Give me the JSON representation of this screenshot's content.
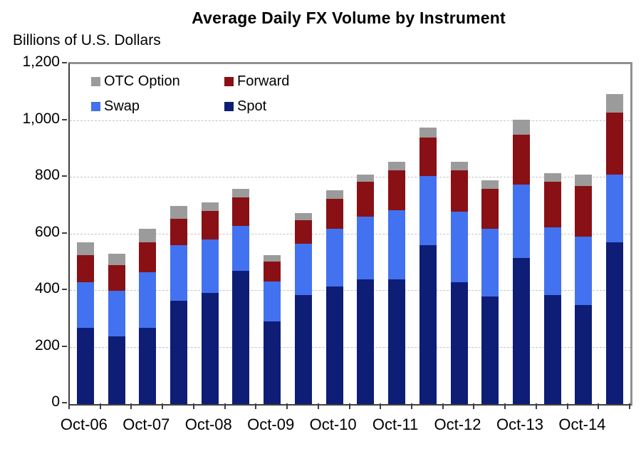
{
  "title": "Average Daily FX Volume by Instrument",
  "y_axis_unit_label": "Billions of U.S. Dollars",
  "chart_data": {
    "type": "bar",
    "stacked": true,
    "title": "Average Daily FX Volume by Instrument",
    "ylabel": "Billions of U.S. Dollars",
    "xlabel": "",
    "ylim": [
      0,
      1200
    ],
    "y_ticks": [
      0,
      200,
      400,
      600,
      800,
      1000,
      1200
    ],
    "y_tick_labels": [
      "0",
      "200",
      "400",
      "600",
      "800",
      "1,000",
      "1,200"
    ],
    "grid": "horizontal-dashed",
    "legend_position": "top-left-inside",
    "legend_order": [
      "OTC Option",
      "Forward",
      "Swap",
      "Spot"
    ],
    "categories": [
      "Oct-06",
      "Apr-07",
      "Oct-07",
      "Apr-08",
      "Oct-08",
      "Apr-09",
      "Oct-09",
      "Apr-10",
      "Oct-10",
      "Apr-11",
      "Oct-11",
      "Apr-12",
      "Oct-12",
      "Apr-13",
      "Oct-13",
      "Apr-14",
      "Oct-14",
      "Apr-15"
    ],
    "x_tick_labels": [
      "Oct-06",
      "Oct-07",
      "Oct-08",
      "Oct-09",
      "Oct-10",
      "Oct-11",
      "Oct-12",
      "Oct-13",
      "Oct-14"
    ],
    "x_tick_label_bar_indices": [
      0,
      2,
      4,
      6,
      8,
      10,
      12,
      14,
      16
    ],
    "series": [
      {
        "name": "Spot",
        "color": "#0e1d75",
        "values": [
          270,
          240,
          270,
          365,
          392,
          470,
          292,
          385,
          415,
          440,
          440,
          560,
          430,
          380,
          515,
          385,
          350,
          570
        ]
      },
      {
        "name": "Swap",
        "color": "#4372f0",
        "values": [
          160,
          160,
          195,
          195,
          190,
          160,
          140,
          180,
          205,
          222,
          245,
          245,
          250,
          240,
          260,
          240,
          240,
          240
        ]
      },
      {
        "name": "Forward",
        "color": "#891014",
        "values": [
          95,
          90,
          105,
          95,
          100,
          100,
          72,
          85,
          105,
          123,
          140,
          135,
          145,
          140,
          175,
          160,
          180,
          220
        ]
      },
      {
        "name": "OTC Option",
        "color": "#9b9b9b",
        "values": [
          45,
          40,
          50,
          45,
          30,
          30,
          21,
          25,
          30,
          25,
          30,
          35,
          30,
          30,
          55,
          30,
          40,
          65
        ]
      }
    ],
    "totals": [
      570,
      530,
      620,
      700,
      712,
      760,
      525,
      675,
      755,
      810,
      855,
      975,
      855,
      790,
      1005,
      815,
      810,
      1095
    ],
    "colors": {
      "spot": "#0e1d75",
      "swap": "#4372f0",
      "forward": "#891014",
      "otc_option": "#9b9b9b",
      "gridline": "#c4c4c4",
      "axis_dark": "#404040",
      "plot_border_gray": "#909090"
    }
  }
}
